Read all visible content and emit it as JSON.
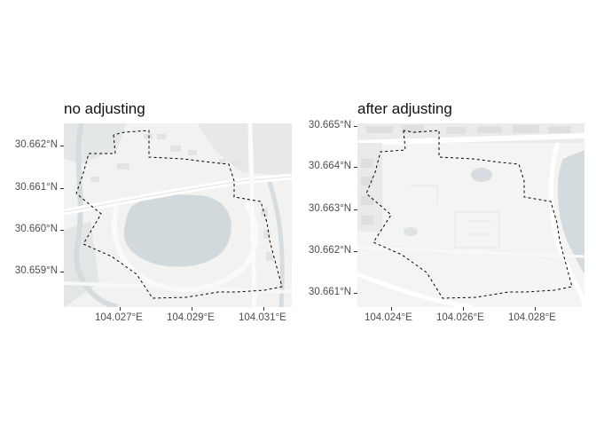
{
  "panels": [
    {
      "title": "no adjusting",
      "y_ticks": [
        "30.662°N",
        "30.661°N",
        "30.660°N",
        "30.659°N"
      ],
      "x_ticks": [
        "104.027°E",
        "104.029°E",
        "104.031°E"
      ]
    },
    {
      "title": "after adjusting",
      "y_ticks": [
        "30.665°N",
        "30.664°N",
        "30.663°N",
        "30.662°N",
        "30.661°N"
      ],
      "x_ticks": [
        "104.024°E",
        "104.026°E",
        "104.028°E"
      ]
    }
  ]
}
